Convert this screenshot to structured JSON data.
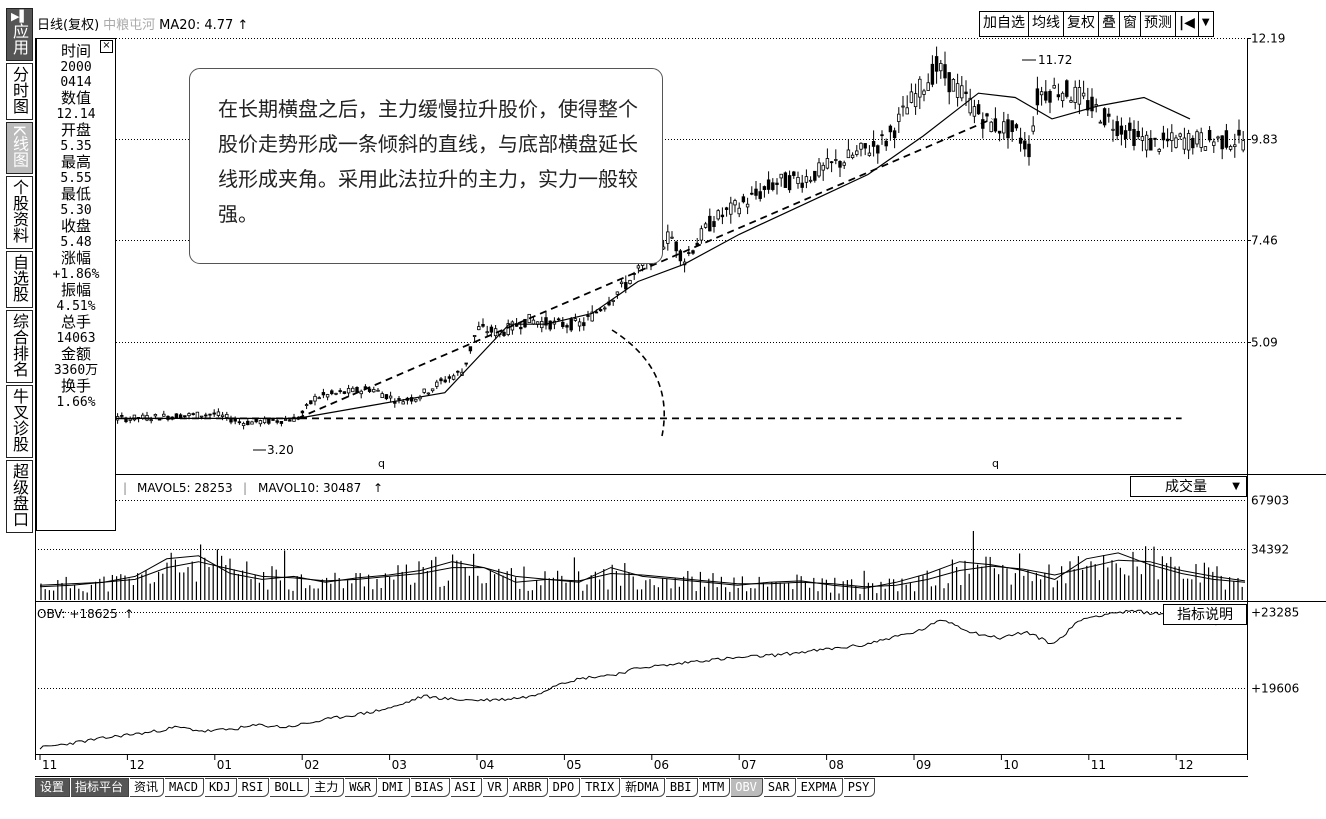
{
  "sidebar": {
    "items": [
      {
        "glyph": "▶▌",
        "label": "应用"
      },
      {
        "label": "分时图"
      },
      {
        "label": "K线图"
      },
      {
        "label": "个股资料"
      },
      {
        "label": "自选股"
      },
      {
        "label": "综合排名"
      },
      {
        "label": "牛叉诊股"
      },
      {
        "label": "超级盘口"
      }
    ]
  },
  "header": {
    "title": "日线(复权)",
    "stock_name": "中粮屯河",
    "ma_label": "MA20: 4.77",
    "ma_arrow": "↑"
  },
  "toolbar": {
    "buttons": [
      "加自选",
      "均线",
      "复权",
      "叠",
      "窗",
      "预测"
    ],
    "back_icon": "|◀",
    "menu_icon": "▼"
  },
  "info_panel": {
    "close_icon": "×",
    "rows": [
      {
        "label": "时间",
        "value": "2000",
        "value2": "0414"
      },
      {
        "label": "数值",
        "value": "12.14"
      },
      {
        "label": "开盘",
        "value": "5.35"
      },
      {
        "label": "最高",
        "value": "5.55"
      },
      {
        "label": "最低",
        "value": "5.30"
      },
      {
        "label": "收盘",
        "value": "5.48"
      },
      {
        "label": "涨幅",
        "value": "+1.86%"
      },
      {
        "label": "振幅",
        "value": "4.51%"
      },
      {
        "label": "总手",
        "value": "14063"
      },
      {
        "label": "金额",
        "value": "3360万"
      },
      {
        "label": "换手",
        "value": "1.66%"
      }
    ]
  },
  "annotation": {
    "text": "在长期横盘之后，主力缓慢拉升股价，使得整个股价走势形成一条倾斜的直线，与底部横盘延长线形成夹角。采用此法拉升的主力，实力一般较强。"
  },
  "volume_panel": {
    "mavol5_label": "MAVOL5: 28253",
    "mavol10_label": "MAVOL10: 30487",
    "arrow": "↑",
    "selector_label": "成交量",
    "selector_arrow": "▼"
  },
  "obv_panel": {
    "label": "OBV: +18625",
    "arrow": "↑",
    "help_button": "指标说明"
  },
  "tabs": [
    "设置",
    "指标平台",
    "资讯",
    "MACD",
    "KDJ",
    "RSI",
    "BOLL",
    "主力",
    "W&R",
    "DMI",
    "BIAS",
    "ASI",
    "VR",
    "ARBR",
    "DPO",
    "TRIX",
    "新DMA",
    "BBI",
    "MTM",
    "OBV",
    "SAR",
    "EXPMA",
    "PSY"
  ],
  "active_tab": "OBV",
  "colors": {
    "line": "#000000",
    "grid": "#000000",
    "panel_border": "#000000",
    "dark_button": "#555555",
    "active_tab": "#bbbbbb"
  },
  "chart_data": [
    {
      "type": "candlestick",
      "title": "日线(复权)",
      "ylim": [
        2.0,
        12.19
      ],
      "y_ticks": [
        "12.19",
        "9.83",
        "7.46",
        "5.09"
      ],
      "x_ticks": [
        "11",
        "12",
        "01",
        "02",
        "03",
        "04",
        "05",
        "06",
        "07",
        "08",
        "09",
        "10",
        "11",
        "12"
      ],
      "x_range_months": [
        0,
        13.2
      ],
      "high_label": "11.72",
      "low_label": "3.20",
      "low_marker": "q",
      "close_path": [
        [
          0.0,
          3.3
        ],
        [
          0.6,
          3.3
        ],
        [
          1.0,
          3.3
        ],
        [
          1.4,
          3.35
        ],
        [
          1.9,
          3.4
        ],
        [
          2.2,
          3.2
        ],
        [
          2.6,
          3.25
        ],
        [
          2.8,
          3.3
        ],
        [
          3.0,
          3.8
        ],
        [
          3.3,
          3.9
        ],
        [
          3.6,
          4.0
        ],
        [
          3.9,
          3.7
        ],
        [
          4.1,
          3.8
        ],
        [
          4.4,
          4.2
        ],
        [
          4.6,
          4.4
        ],
        [
          4.75,
          5.4
        ],
        [
          5.0,
          5.3
        ],
        [
          5.3,
          5.6
        ],
        [
          5.6,
          5.5
        ],
        [
          5.9,
          5.5
        ],
        [
          6.1,
          5.9
        ],
        [
          6.4,
          6.5
        ],
        [
          6.7,
          7.2
        ],
        [
          6.85,
          7.6
        ],
        [
          7.0,
          7.0
        ],
        [
          7.3,
          7.9
        ],
        [
          7.7,
          8.4
        ],
        [
          8.0,
          8.8
        ],
        [
          8.3,
          8.9
        ],
        [
          8.6,
          9.2
        ],
        [
          8.9,
          9.5
        ],
        [
          9.2,
          9.8
        ],
        [
          9.5,
          10.8
        ],
        [
          9.75,
          11.5
        ],
        [
          10.05,
          10.8
        ],
        [
          10.3,
          10.2
        ],
        [
          10.6,
          10.0
        ],
        [
          10.75,
          9.6
        ],
        [
          10.85,
          10.9
        ],
        [
          11.1,
          11.0
        ],
        [
          11.3,
          10.8
        ],
        [
          11.6,
          10.3
        ],
        [
          11.9,
          9.9
        ],
        [
          12.1,
          9.7
        ],
        [
          12.4,
          9.8
        ]
      ],
      "ma20_path": [
        [
          0.0,
          3.3
        ],
        [
          1.0,
          3.3
        ],
        [
          2.0,
          3.3
        ],
        [
          2.8,
          3.3
        ],
        [
          3.6,
          3.6
        ],
        [
          4.4,
          3.9
        ],
        [
          5.1,
          5.5
        ],
        [
          5.5,
          5.5
        ],
        [
          6.0,
          5.75
        ],
        [
          6.5,
          6.5
        ],
        [
          7.0,
          6.9
        ],
        [
          7.6,
          7.6
        ],
        [
          8.0,
          8.0
        ],
        [
          8.5,
          8.5
        ],
        [
          9.0,
          9.0
        ],
        [
          9.6,
          9.9
        ],
        [
          10.2,
          10.9
        ],
        [
          10.6,
          10.8
        ],
        [
          11.0,
          10.3
        ],
        [
          11.5,
          10.6
        ],
        [
          12.0,
          10.8
        ],
        [
          12.5,
          10.3
        ]
      ],
      "trendline_path": [
        [
          2.8,
          3.3
        ],
        [
          10.35,
          10.3
        ]
      ],
      "base_line_path": [
        [
          0.0,
          3.3
        ],
        [
          12.3,
          3.3
        ]
      ]
    },
    {
      "type": "bar",
      "title": "成交量",
      "ylim": [
        0,
        67903
      ],
      "y_ticks": [
        "67903",
        "34392"
      ],
      "series": [
        {
          "name": "MAVOL5",
          "values": [
            9000,
            10000,
            12000,
            16000,
            28000,
            30000,
            18000,
            14000,
            16000,
            12000,
            15000,
            17000,
            20000,
            26000,
            22000,
            12000,
            14000,
            12000,
            22000,
            16000,
            14000,
            12000,
            10000,
            12000,
            13000,
            10000,
            8000,
            12000,
            18000,
            26000,
            24000,
            20000,
            14000,
            28000,
            32000,
            24000,
            18000,
            14000,
            12000
          ]
        },
        {
          "name": "MAVOL10",
          "values": [
            10000,
            11000,
            12000,
            14000,
            22000,
            26000,
            21000,
            16000,
            15000,
            13000,
            14000,
            16000,
            18000,
            22000,
            22000,
            16000,
            14000,
            13000,
            18000,
            17000,
            15000,
            13000,
            11000,
            11000,
            12000,
            11000,
            9000,
            10000,
            14000,
            20000,
            23000,
            21000,
            17000,
            22000,
            27000,
            26000,
            20000,
            16000,
            13000
          ]
        }
      ]
    },
    {
      "type": "line",
      "title": "OBV",
      "ylim": [
        16500,
        23600
      ],
      "y_ticks": [
        "+23285",
        "+19606"
      ],
      "series": [
        {
          "name": "OBV",
          "values": [
            16700,
            16900,
            17100,
            17300,
            17450,
            17700,
            17500,
            17600,
            17800,
            17700,
            17950,
            18200,
            18400,
            18700,
            19200,
            19050,
            19000,
            19050,
            19200,
            19850,
            20100,
            20250,
            20600,
            20700,
            20900,
            21000,
            21100,
            21200,
            21350,
            21500,
            21650,
            22000,
            22300,
            22900,
            22300,
            22000,
            22300,
            21700,
            22900,
            23200,
            23300,
            23150,
            23000,
            22700,
            23000
          ]
        }
      ]
    }
  ]
}
